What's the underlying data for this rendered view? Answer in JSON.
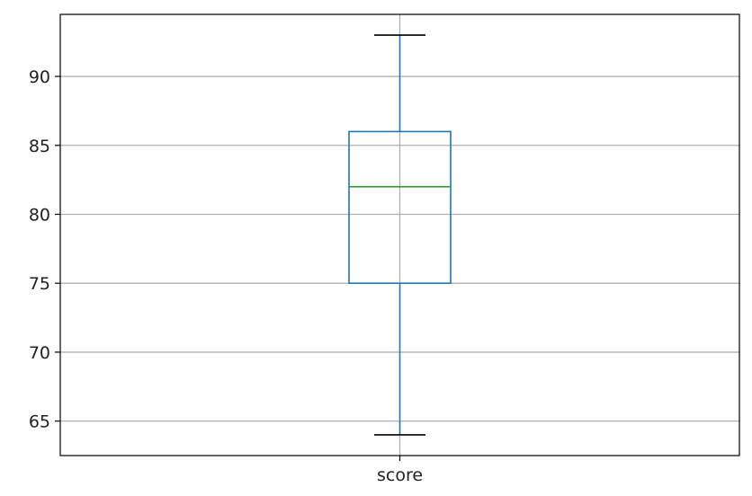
{
  "chart_data": {
    "type": "box",
    "categories": [
      "score"
    ],
    "boxes": [
      {
        "category": "score",
        "whisker_low": 64,
        "q1": 75,
        "median": 82,
        "q3": 86,
        "whisker_high": 93
      }
    ],
    "yticks": [
      65,
      70,
      75,
      80,
      85,
      90
    ],
    "ylim": [
      62.5,
      94.5
    ],
    "grid": true,
    "colors": {
      "box": "#1f77b4",
      "median": "#2ca02c",
      "whisker_cap": "#000000",
      "grid": "#b0b0b0",
      "frame": "#000000"
    }
  }
}
